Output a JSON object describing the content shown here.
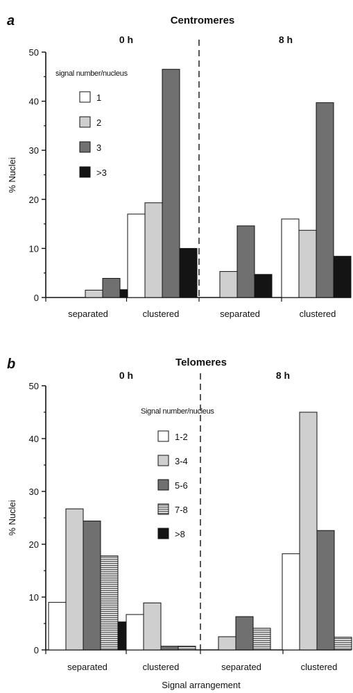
{
  "colors": {
    "white": "#ffffff",
    "light": "#cfcfcf",
    "mid": "#707070",
    "dark": "#141414",
    "axis": "#111111"
  },
  "chart_data": [
    {
      "type": "bar",
      "panel_letter": "a",
      "title": "Centromeres",
      "group_labels": [
        "0 h",
        "8 h"
      ],
      "categories": [
        "separated",
        "clustered",
        "separated",
        "clustered"
      ],
      "category_group": [
        0,
        0,
        1,
        1
      ],
      "ylabel": "% Nuclei",
      "xlabel": "",
      "ylim": [
        0,
        50
      ],
      "yticks": [
        "0",
        "10",
        "20",
        "30",
        "40",
        "50"
      ],
      "legend_title": "signal number/nucleus",
      "legend_placement": "top-left",
      "divider": "dashed vertical line between 0 h and 8 h",
      "series": [
        {
          "name": "1",
          "fill": "white",
          "values": [
            0,
            17,
            0,
            16
          ]
        },
        {
          "name": "2",
          "fill": "light",
          "values": [
            1.5,
            19.3,
            5.3,
            13.7
          ]
        },
        {
          "name": "3",
          "fill": "mid",
          "values": [
            3.9,
            46.5,
            14.6,
            39.7
          ]
        },
        {
          "name": ">3",
          "fill": "dark",
          "values": [
            1.6,
            10,
            4.7,
            8.4
          ]
        }
      ]
    },
    {
      "type": "bar",
      "panel_letter": "b",
      "title": "Telomeres",
      "group_labels": [
        "0 h",
        "8 h"
      ],
      "categories": [
        "separated",
        "clustered",
        "separated",
        "clustered"
      ],
      "category_group": [
        0,
        0,
        1,
        1
      ],
      "ylabel": "% Nuclei",
      "xlabel": "Signal arrangement",
      "ylim": [
        0,
        50
      ],
      "yticks": [
        "0",
        "10",
        "20",
        "30",
        "40",
        "50"
      ],
      "legend_title": "Signal number/nucleus",
      "legend_placement": "top-center",
      "divider": "dashed vertical line between 0 h and 8 h",
      "series": [
        {
          "name": "1-2",
          "fill": "white",
          "values": [
            9,
            6.7,
            0,
            18.2
          ]
        },
        {
          "name": "3-4",
          "fill": "light",
          "values": [
            26.7,
            8.9,
            2.5,
            45
          ]
        },
        {
          "name": "5-6",
          "fill": "mid",
          "values": [
            24.4,
            0.7,
            6.3,
            22.6
          ]
        },
        {
          "name": "7-8",
          "fill": "striped",
          "values": [
            17.8,
            0.7,
            4.1,
            2.4
          ]
        },
        {
          "name": ">8",
          "fill": "dark",
          "values": [
            5.3,
            0,
            0,
            0
          ]
        }
      ]
    }
  ]
}
